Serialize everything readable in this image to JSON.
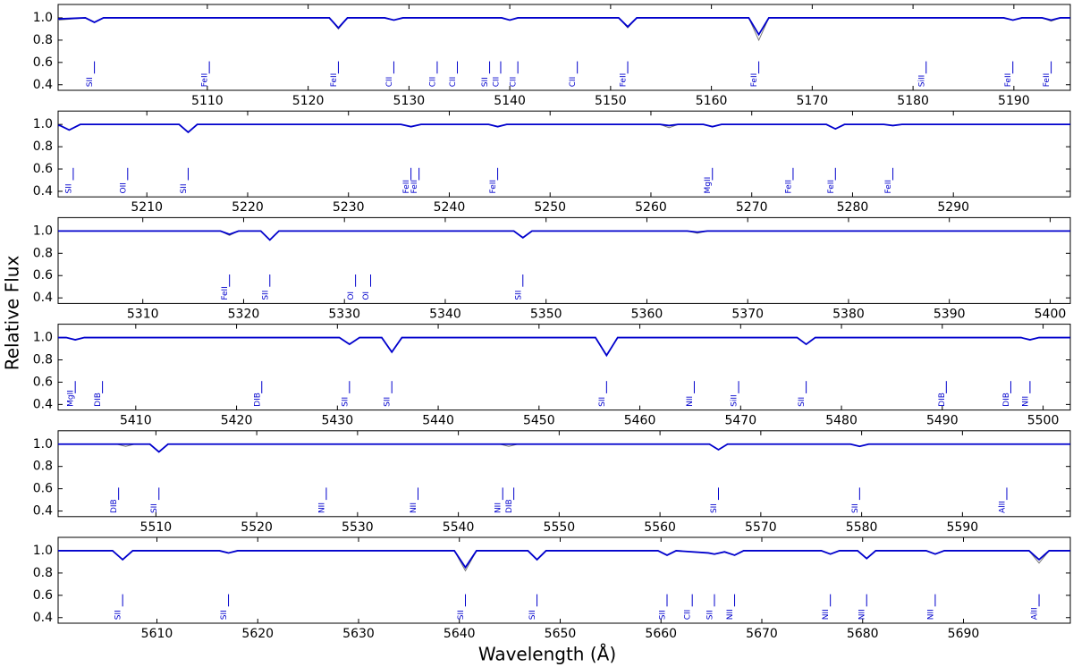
{
  "chart_data": {
    "type": "line",
    "xlabel": "Wavelength (Å)",
    "ylabel": "Relative Flux",
    "ylim": [
      0.35,
      1.12
    ],
    "yticks": [
      0.4,
      0.6,
      0.8,
      {
        "value": 1,
        "label": "1.0"
      }
    ],
    "panels": [
      {
        "xlim": [
          5095.2,
          5195.6
        ],
        "xticks": [
          5110,
          5120,
          5130,
          5140,
          5150,
          5160,
          5170,
          5180,
          5190
        ],
        "x": [
          5095.2,
          5097.9,
          5098.8,
          5099.7,
          5122.1,
          5123.0,
          5123.9,
          5127.6,
          5128.5,
          5129.4,
          5139.2,
          5140.0,
          5140.8,
          5150.8,
          5151.7,
          5152.6,
          5163.7,
          5164.7,
          5165.7,
          5189.0,
          5189.9,
          5190.8,
          5192.8,
          5193.7,
          5194.6,
          5195.6
        ],
        "series": [
          {
            "color": "#777777",
            "values": [
              0.98,
              1,
              0.96,
              1,
              1,
              0.9,
              1,
              1,
              0.98,
              1,
              1,
              0.98,
              1,
              1,
              0.91,
              1,
              1,
              0.8,
              1,
              1,
              0.98,
              1,
              1,
              0.97,
              1,
              1
            ]
          },
          {
            "color": "#0000cc",
            "values": [
              0.99,
              1,
              0.96,
              1,
              1,
              0.91,
              1,
              1,
              0.98,
              1,
              1,
              0.98,
              1,
              1,
              0.92,
              1,
              1,
              0.85,
              1,
              1,
              0.98,
              1,
              1,
              0.98,
              1,
              1
            ]
          }
        ],
        "annotations": [
          {
            "label": "SII",
            "x": 5098.8
          },
          {
            "label": "FeII",
            "x": 5110.2
          },
          {
            "label": "FeII",
            "x": 5123.0
          },
          {
            "label": "CII",
            "x": 5128.5
          },
          {
            "label": "CII",
            "x": 5132.8
          },
          {
            "label": "CII",
            "x": 5134.8
          },
          {
            "label": "SII",
            "x": 5138.0
          },
          {
            "label": "CII",
            "x": 5139.1
          },
          {
            "label": "CII",
            "x": 5140.8
          },
          {
            "label": "CII",
            "x": 5146.7
          },
          {
            "label": "FeII",
            "x": 5151.7
          },
          {
            "label": "FeII",
            "x": 5164.7
          },
          {
            "label": "SiII",
            "x": 5181.3
          },
          {
            "label": "FeII",
            "x": 5189.9
          },
          {
            "label": "FeII",
            "x": 5193.7
          }
        ]
      },
      {
        "xlim": [
          5201.2,
          5301.6
        ],
        "xticks": [
          5210,
          5220,
          5230,
          5240,
          5250,
          5260,
          5270,
          5280,
          5290
        ],
        "x": [
          5201.2,
          5201.4,
          5202.3,
          5203.4,
          5213.2,
          5214.1,
          5215.0,
          5235.2,
          5236.2,
          5237.2,
          5243.9,
          5244.8,
          5245.7,
          5260.9,
          5261.8,
          5262.7,
          5265.2,
          5266.1,
          5267.0,
          5277.4,
          5278.3,
          5279.2,
          5283.1,
          5284.0,
          5284.9,
          5301.6
        ],
        "series": [
          {
            "color": "#777777",
            "values": [
              0.99,
              0.99,
              0.95,
              1,
              1,
              0.93,
              1,
              1,
              0.98,
              1,
              1,
              0.98,
              1,
              1,
              0.97,
              1,
              1,
              0.98,
              1,
              1,
              0.96,
              1,
              1,
              0.99,
              1,
              1
            ]
          },
          {
            "color": "#0000cc",
            "values": [
              0.99,
              0.99,
              0.95,
              1,
              1,
              0.93,
              1,
              1,
              0.98,
              1,
              1,
              0.98,
              1,
              1,
              0.99,
              1,
              1,
              0.98,
              1,
              1,
              0.96,
              1,
              1,
              0.99,
              1,
              1
            ]
          }
        ],
        "annotations": [
          {
            "label": "SII",
            "x": 5202.7
          },
          {
            "label": "OII",
            "x": 5208.1
          },
          {
            "label": "SII",
            "x": 5214.1
          },
          {
            "label": "FeII",
            "x": 5236.2
          },
          {
            "label": "FeII",
            "x": 5237.0
          },
          {
            "label": "FeII",
            "x": 5244.8
          },
          {
            "label": "MgII",
            "x": 5266.1
          },
          {
            "label": "FeII",
            "x": 5274.1
          },
          {
            "label": "FeII",
            "x": 5278.3
          },
          {
            "label": "FeII",
            "x": 5284.0
          }
        ]
      },
      {
        "xlim": [
          5301.6,
          5402.0
        ],
        "xticks": [
          5310,
          5320,
          5330,
          5340,
          5350,
          5360,
          5370,
          5380,
          5390,
          5400
        ],
        "x": [
          5301.6,
          5317.7,
          5318.6,
          5319.5,
          5321.7,
          5322.6,
          5323.5,
          5346.8,
          5347.7,
          5348.6,
          5364.0,
          5365.0,
          5366.0,
          5402.0
        ],
        "series": [
          {
            "color": "#777777",
            "values": [
              1,
              1,
              0.96,
              1,
              1,
              0.92,
              1,
              1,
              0.94,
              1,
              1,
              0.98,
              1,
              1
            ]
          },
          {
            "color": "#0000cc",
            "values": [
              1,
              1,
              0.97,
              1,
              1,
              0.92,
              1,
              1,
              0.94,
              1,
              1,
              0.99,
              1,
              1
            ]
          }
        ],
        "annotations": [
          {
            "label": "FeII",
            "x": 5318.6
          },
          {
            "label": "SII",
            "x": 5322.6
          },
          {
            "label": "OI",
            "x": 5331.1
          },
          {
            "label": "OI",
            "x": 5332.6
          },
          {
            "label": "SII",
            "x": 5347.7
          }
        ]
      },
      {
        "xlim": [
          5402.3,
          5502.7
        ],
        "xticks": [
          5410,
          5420,
          5430,
          5440,
          5450,
          5460,
          5470,
          5480,
          5490,
          5500
        ],
        "x": [
          5402.3,
          5403.1,
          5404.0,
          5404.9,
          5430.2,
          5431.2,
          5432.2,
          5434.4,
          5435.4,
          5436.4,
          5455.6,
          5456.7,
          5457.8,
          5475.6,
          5476.5,
          5477.4,
          5497.8,
          5498.7,
          5499.6,
          5502.7
        ],
        "series": [
          {
            "color": "#777777",
            "values": [
              1,
              1,
              0.98,
              1,
              1,
              0.94,
              1,
              1,
              0.87,
              1,
              1,
              0.84,
              1,
              1,
              0.94,
              1,
              1,
              0.98,
              1,
              1
            ]
          },
          {
            "color": "#0000cc",
            "values": [
              1,
              1,
              0.98,
              1,
              1,
              0.94,
              1,
              1,
              0.87,
              1,
              1,
              0.84,
              1,
              1,
              0.94,
              1,
              1,
              0.98,
              1,
              1
            ]
          }
        ],
        "annotations": [
          {
            "label": "MgII",
            "x": 5404.0
          },
          {
            "label": "DIB",
            "x": 5406.7
          },
          {
            "label": "DIB",
            "x": 5422.5
          },
          {
            "label": "SII",
            "x": 5431.2
          },
          {
            "label": "SII",
            "x": 5435.4
          },
          {
            "label": "SII",
            "x": 5456.7
          },
          {
            "label": "NII",
            "x": 5465.4
          },
          {
            "label": "SiII",
            "x": 5469.8
          },
          {
            "label": "SII",
            "x": 5476.5
          },
          {
            "label": "DIB",
            "x": 5490.4
          },
          {
            "label": "DIB",
            "x": 5496.8
          },
          {
            "label": "NII",
            "x": 5498.7
          }
        ]
      },
      {
        "xlim": [
          5500.3,
          5600.7
        ],
        "xticks": [
          5510,
          5520,
          5530,
          5540,
          5550,
          5560,
          5570,
          5580,
          5590
        ],
        "x": [
          5500.3,
          5506.1,
          5507.0,
          5507.9,
          5509.4,
          5510.3,
          5511.2,
          5544.1,
          5545.0,
          5545.9,
          5564.9,
          5565.8,
          5566.7,
          5578.9,
          5579.8,
          5580.7,
          5600.7
        ],
        "series": [
          {
            "color": "#777777",
            "values": [
              1,
              1,
              0.98,
              1,
              1,
              0.93,
              1,
              1,
              0.98,
              1,
              1,
              0.95,
              1,
              1,
              0.98,
              1,
              1
            ]
          },
          {
            "color": "#0000cc",
            "values": [
              1,
              1,
              1,
              1,
              1,
              0.93,
              1,
              1,
              1,
              1,
              1,
              0.95,
              1,
              1,
              0.98,
              1,
              1
            ]
          }
        ],
        "annotations": [
          {
            "label": "DIB",
            "x": 5506.3
          },
          {
            "label": "SII",
            "x": 5510.3
          },
          {
            "label": "NII",
            "x": 5526.9
          },
          {
            "label": "NII",
            "x": 5536.0
          },
          {
            "label": "NII",
            "x": 5544.4
          },
          {
            "label": "DIB",
            "x": 5545.5
          },
          {
            "label": "SII",
            "x": 5565.8
          },
          {
            "label": "SII",
            "x": 5579.8
          },
          {
            "label": "AlII",
            "x": 5594.4
          }
        ]
      },
      {
        "xlim": [
          5600.2,
          5700.6
        ],
        "xticks": [
          5610,
          5620,
          5630,
          5640,
          5650,
          5660,
          5670,
          5680,
          5690
        ],
        "x": [
          5600.2,
          5605.6,
          5606.6,
          5607.6,
          5616.2,
          5617.1,
          5618.0,
          5639.5,
          5640.6,
          5641.7,
          5646.8,
          5647.7,
          5648.6,
          5659.7,
          5660.6,
          5661.5,
          5664.7,
          5665.3,
          5666.3,
          5667.3,
          5668.2,
          5675.9,
          5676.8,
          5677.7,
          5679.5,
          5680.4,
          5681.3,
          5686.3,
          5687.2,
          5688.1,
          5696.5,
          5697.5,
          5698.5,
          5700.6
        ],
        "series": [
          {
            "color": "#777777",
            "values": [
              1,
              1,
              0.92,
              1,
              1,
              0.98,
              1,
              1,
              0.82,
              1,
              1,
              0.92,
              1,
              1,
              0.96,
              1,
              0.98,
              0.97,
              0.99,
              0.96,
              1,
              1,
              0.97,
              1,
              1,
              0.93,
              1,
              1,
              0.97,
              1,
              1,
              0.89,
              1,
              1
            ]
          },
          {
            "color": "#0000cc",
            "values": [
              1,
              1,
              0.92,
              1,
              1,
              0.98,
              1,
              1,
              0.85,
              1,
              1,
              0.92,
              1,
              1,
              0.96,
              1,
              0.98,
              0.97,
              0.99,
              0.96,
              1,
              1,
              0.97,
              1,
              1,
              0.93,
              1,
              1,
              0.97,
              1,
              1,
              0.92,
              1,
              1
            ]
          }
        ],
        "annotations": [
          {
            "label": "SII",
            "x": 5606.6
          },
          {
            "label": "SII",
            "x": 5617.1
          },
          {
            "label": "SII",
            "x": 5640.6
          },
          {
            "label": "SII",
            "x": 5647.7
          },
          {
            "label": "SII",
            "x": 5660.6
          },
          {
            "label": "CII",
            "x": 5663.1
          },
          {
            "label": "SII",
            "x": 5665.3
          },
          {
            "label": "NII",
            "x": 5667.3
          },
          {
            "label": "NII",
            "x": 5676.8
          },
          {
            "label": "NII",
            "x": 5680.4
          },
          {
            "label": "NII",
            "x": 5687.2
          },
          {
            "label": "AlII",
            "x": 5697.5
          }
        ]
      }
    ]
  }
}
